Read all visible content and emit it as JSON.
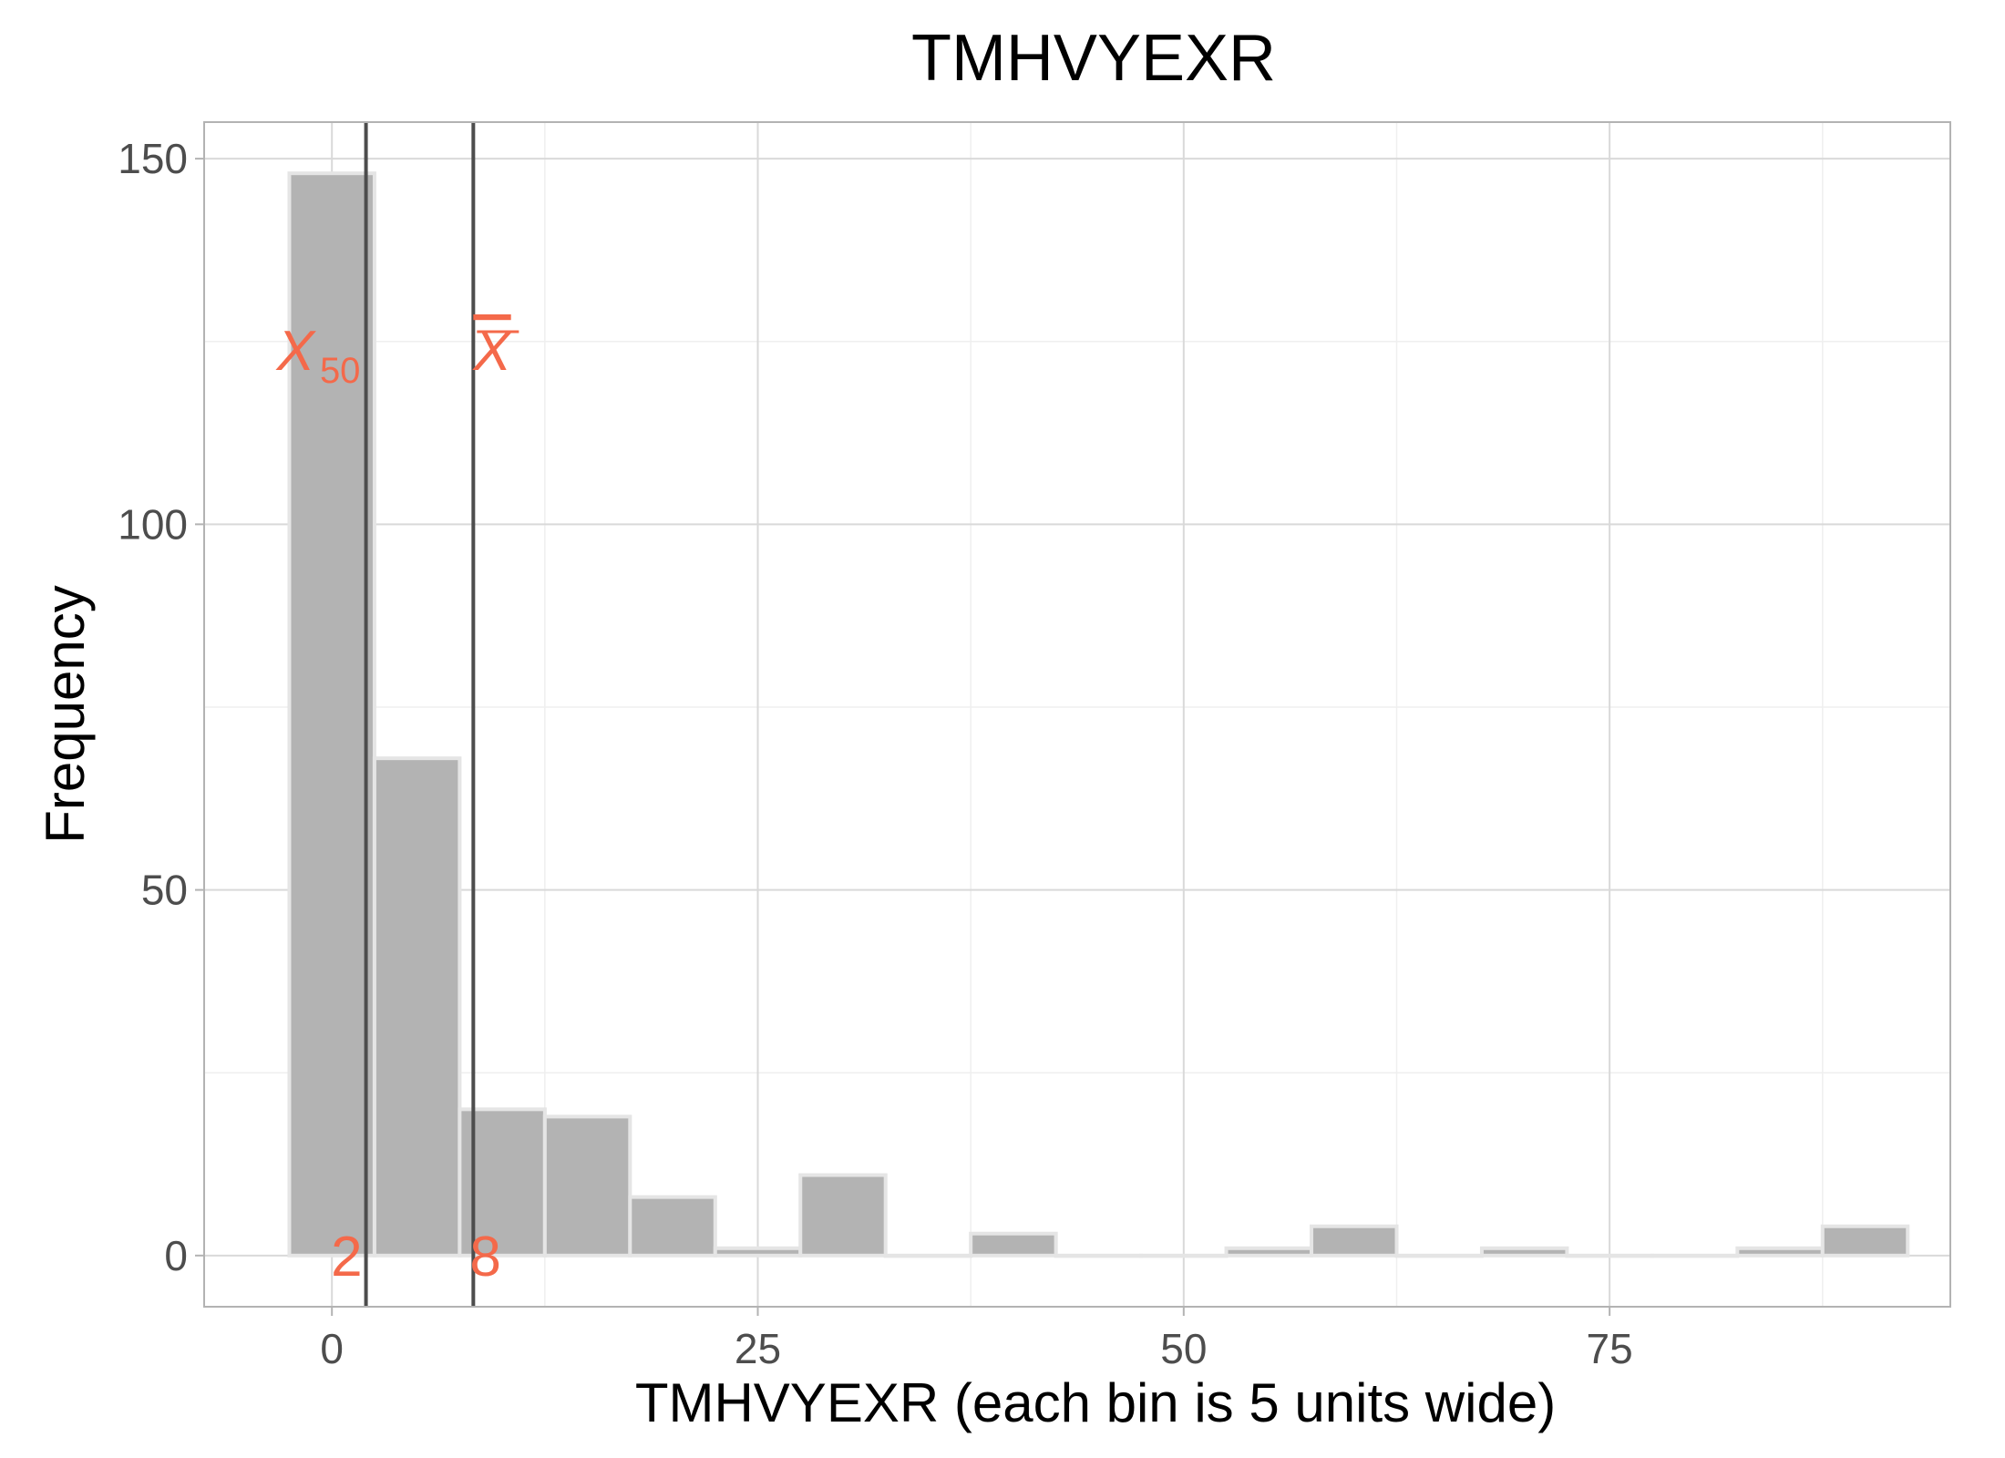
{
  "chart_data": {
    "type": "bar",
    "title": "TMHVYEXR",
    "xlabel": "TMHVYEXR (each bin is 5 units wide)",
    "ylabel": "Frequency",
    "bin_width": 5,
    "bins": [
      {
        "center": 0,
        "count": 148
      },
      {
        "center": 5,
        "count": 68
      },
      {
        "center": 10,
        "count": 20
      },
      {
        "center": 15,
        "count": 19
      },
      {
        "center": 20,
        "count": 8
      },
      {
        "center": 25,
        "count": 1
      },
      {
        "center": 30,
        "count": 11
      },
      {
        "center": 35,
        "count": 0
      },
      {
        "center": 40,
        "count": 3
      },
      {
        "center": 45,
        "count": 0
      },
      {
        "center": 50,
        "count": 0
      },
      {
        "center": 55,
        "count": 1
      },
      {
        "center": 60,
        "count": 4
      },
      {
        "center": 65,
        "count": 0
      },
      {
        "center": 70,
        "count": 1
      },
      {
        "center": 75,
        "count": 0
      },
      {
        "center": 80,
        "count": 0
      },
      {
        "center": 85,
        "count": 1
      },
      {
        "center": 90,
        "count": 4
      }
    ],
    "xlim": [
      -7.5,
      95
    ],
    "ylim": [
      -7,
      155
    ],
    "x_ticks": [
      0,
      25,
      50,
      75
    ],
    "y_ticks": [
      0,
      50,
      100,
      150
    ],
    "grid": true,
    "reference_lines": [
      {
        "name": "median",
        "value": 2,
        "symbol": "X",
        "subscript": "50",
        "value_label": "2"
      },
      {
        "name": "mean",
        "value": 8.3,
        "symbol": "X",
        "value_label": "8"
      }
    ],
    "colors": {
      "bar_fill": "#b3b3b3",
      "bar_outline": "#e5e5e5",
      "reference_line": "#4d4d4d",
      "annotation": "#f4694a",
      "grid_major": "#d9d9d9",
      "grid_minor": "#efefef",
      "panel_border": "#b3b3b3"
    }
  }
}
